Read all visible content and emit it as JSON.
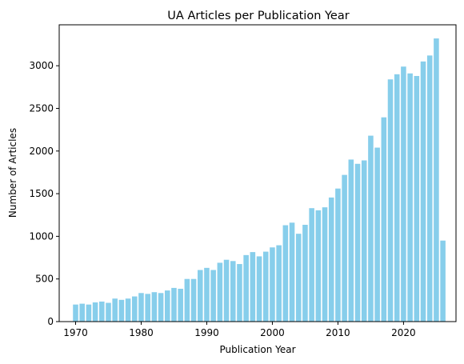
{
  "chart_data": {
    "type": "bar",
    "title": "UA Articles per Publication Year",
    "xlabel": "Publication Year",
    "ylabel": "Number of Articles",
    "bar_color": "#87ceeb",
    "grid": false,
    "xlim": [
      1967.5,
      2028.0
    ],
    "ylim": [
      0,
      3480
    ],
    "x_ticks": [
      1970,
      1980,
      1990,
      2000,
      2010,
      2020
    ],
    "y_ticks": [
      0,
      500,
      1000,
      1500,
      2000,
      2500,
      3000
    ],
    "categories": [
      1970,
      1971,
      1972,
      1973,
      1974,
      1975,
      1976,
      1977,
      1978,
      1979,
      1980,
      1981,
      1982,
      1983,
      1984,
      1985,
      1986,
      1987,
      1988,
      1989,
      1990,
      1991,
      1992,
      1993,
      1994,
      1995,
      1996,
      1997,
      1998,
      1999,
      2000,
      2001,
      2002,
      2003,
      2004,
      2005,
      2006,
      2007,
      2008,
      2009,
      2010,
      2011,
      2012,
      2013,
      2014,
      2015,
      2016,
      2017,
      2018,
      2019,
      2020,
      2021,
      2022,
      2023,
      2024,
      2025,
      2026
    ],
    "values": [
      200,
      210,
      200,
      225,
      235,
      220,
      270,
      255,
      270,
      295,
      335,
      325,
      345,
      335,
      365,
      395,
      385,
      500,
      500,
      605,
      630,
      605,
      690,
      725,
      710,
      675,
      780,
      815,
      765,
      820,
      870,
      895,
      1130,
      1160,
      1030,
      1135,
      1330,
      1305,
      1340,
      1455,
      1560,
      1720,
      1900,
      1850,
      1890,
      2180,
      2040,
      2395,
      2840,
      2900,
      2990,
      2910,
      2880,
      3050,
      3120,
      3320,
      950
    ]
  }
}
